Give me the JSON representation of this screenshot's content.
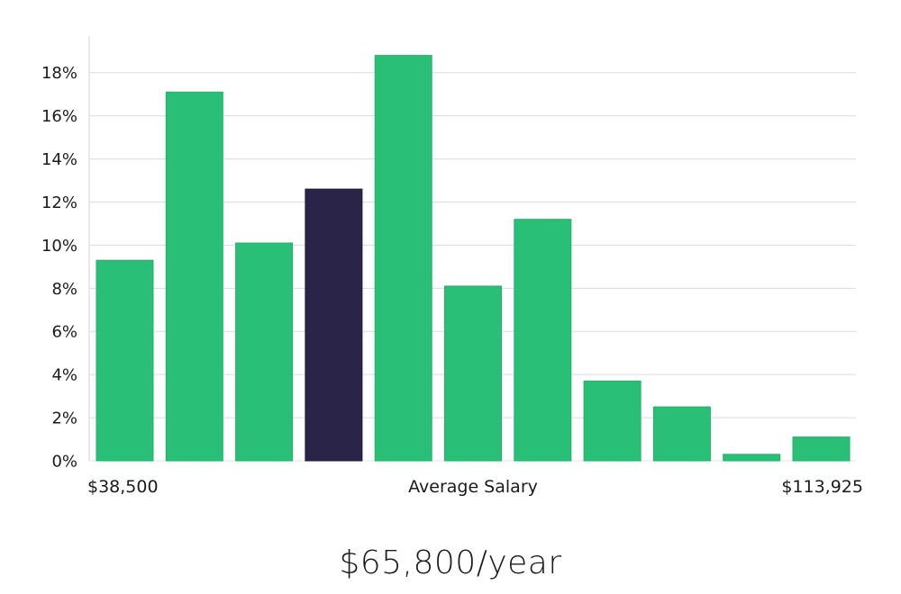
{
  "chart_data": {
    "type": "bar",
    "title": "",
    "ylabel": "",
    "xlabel": "Average Salary",
    "ylim": [
      0,
      19.7
    ],
    "y_ticks": [
      0,
      2,
      4,
      6,
      8,
      10,
      12,
      14,
      16,
      18
    ],
    "y_tick_suffix": "%",
    "x_start_label": "$38,500",
    "x_center_label": "Average Salary",
    "x_end_label": "$113,925",
    "values": [
      9.3,
      17.1,
      10.1,
      12.6,
      18.8,
      8.1,
      11.2,
      3.7,
      2.5,
      0.3,
      1.1
    ],
    "highlight_index": 3,
    "grid": true
  },
  "colors": {
    "bar": "#2abf76",
    "highlight": "#2a2548",
    "grid": "#dcdcdc",
    "axis": "#e3e3e3"
  },
  "salary": {
    "amount_label": "$65,800/year"
  }
}
